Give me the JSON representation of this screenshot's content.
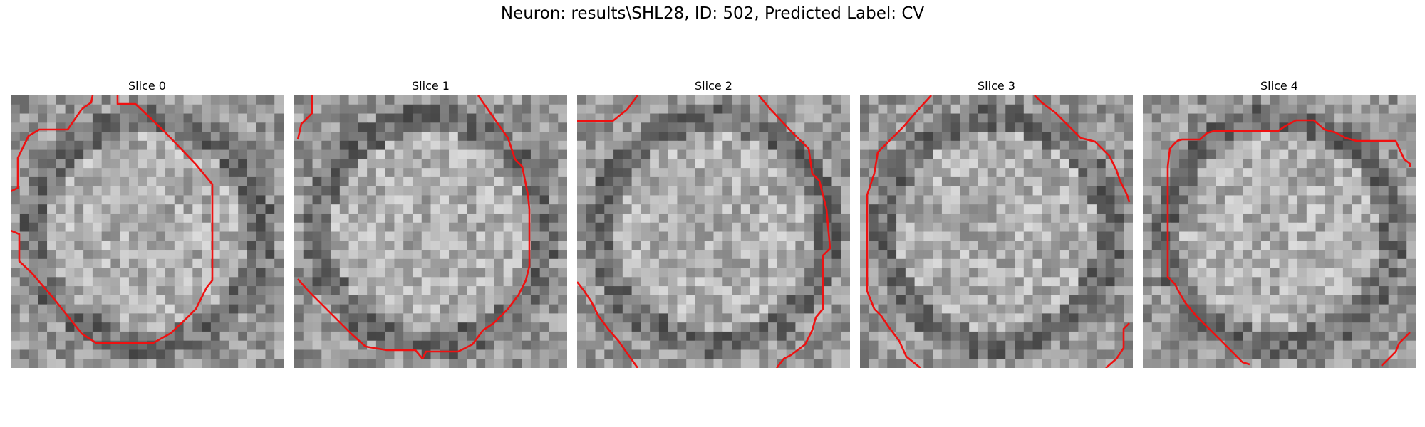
{
  "figure": {
    "title": "Neuron: results\\SHL28, ID: 502, Predicted Label: CV"
  },
  "panels": [
    {
      "title": "Slice 0"
    },
    {
      "title": "Slice 1"
    },
    {
      "title": "Slice 2"
    },
    {
      "title": "Slice 3"
    },
    {
      "title": "Slice 4"
    }
  ],
  "colors": {
    "contour": "#ee1111",
    "background": "#ffffff"
  }
}
